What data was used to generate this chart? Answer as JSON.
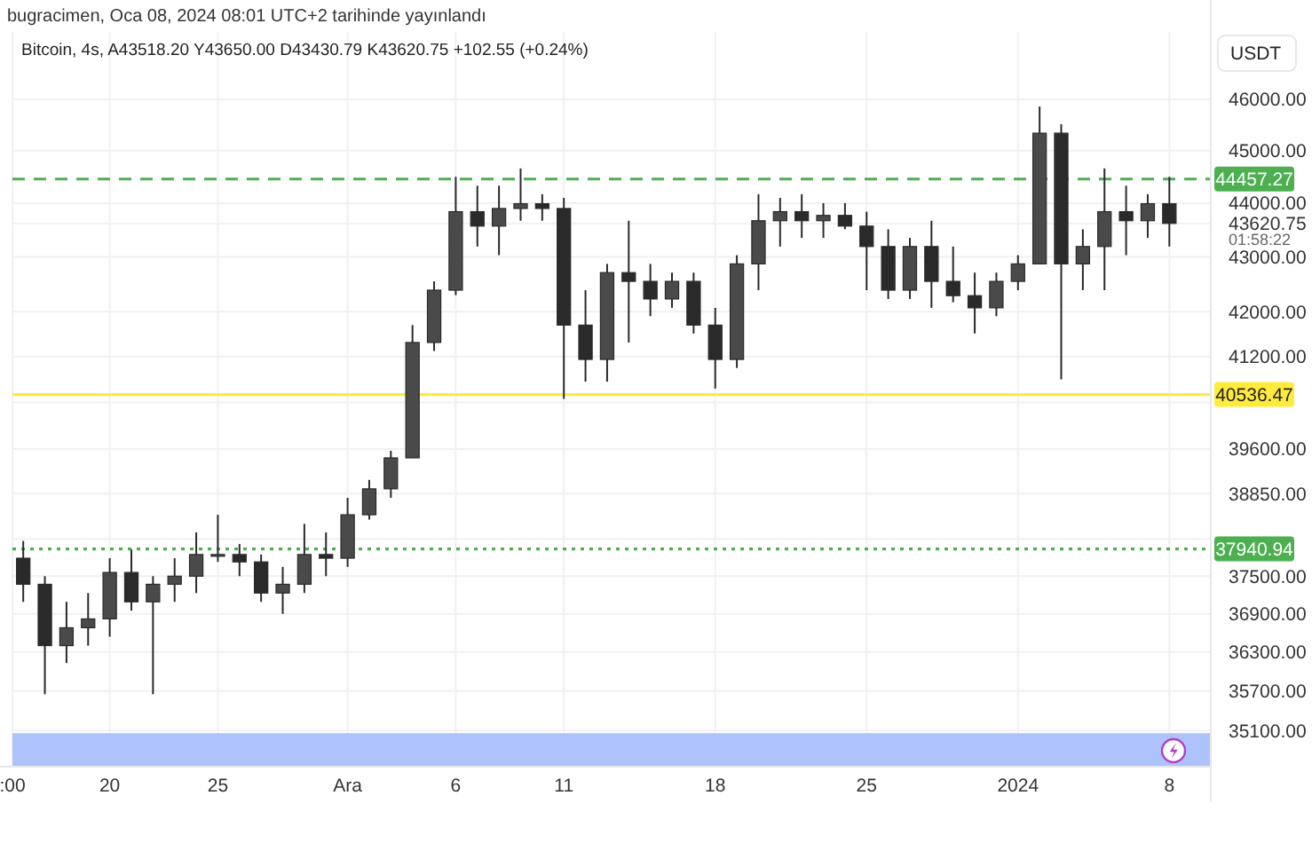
{
  "chart_data": {
    "type": "candlestick",
    "title": "bugracimen, Oca 08, 2024 08:01 UTC+2 tarihinde yayınlandı",
    "subtitle": "Bitcoin, 4s, A43518.20 Y43650.00 D43430.79 K43620.75 +102.55 (+0.24%)",
    "ylabel": "USDT",
    "log": true,
    "grid": true,
    "color": "#2a2a2a",
    "xlim": [
      "2023-11-15T12:00",
      "2024-01-09T22:00"
    ],
    "ylim": [
      34560,
      47350
    ],
    "xticks": [
      {
        "value": "2023-11-15T12:00",
        "label": ":00"
      },
      {
        "value": "2023-11-20",
        "label": "20"
      },
      {
        "value": "2023-11-25",
        "label": "25"
      },
      {
        "value": "2023-12-01",
        "label": "Ara"
      },
      {
        "value": "2023-12-06",
        "label": "6"
      },
      {
        "value": "2023-12-11",
        "label": "11"
      },
      {
        "value": "2023-12-18",
        "label": "18"
      },
      {
        "value": "2023-12-25",
        "label": "25"
      },
      {
        "value": "2024-01-01",
        "label": "2024"
      },
      {
        "value": "2024-01-08",
        "label": "8"
      }
    ],
    "yticks": [
      {
        "value": 35100,
        "label": "35100.00"
      },
      {
        "value": 35700,
        "label": "35700.00"
      },
      {
        "value": 36300,
        "label": "36300.00"
      },
      {
        "value": 36900,
        "label": "36900.00"
      },
      {
        "value": 37500,
        "label": "37500.00"
      },
      {
        "value": 38100,
        "label": null
      },
      {
        "value": 38850,
        "label": "38850.00"
      },
      {
        "value": 39600,
        "label": "39600.00"
      },
      {
        "value": 40400,
        "label": null
      },
      {
        "value": 41200,
        "label": "41200.00"
      },
      {
        "value": 42000,
        "label": "42000.00"
      },
      {
        "value": 43000,
        "label": "43000.00"
      },
      {
        "value": 43620.75,
        "label": "43620.75"
      },
      {
        "value": 44000,
        "label": "44000.00"
      },
      {
        "value": 45000,
        "label": "45000.00"
      },
      {
        "value": 46000,
        "label": "46000.00"
      }
    ],
    "x": [
      "2023-11-16",
      "2023-11-17",
      "2023-11-18",
      "2023-11-19",
      "2023-11-20",
      "2023-11-21",
      "2023-11-22",
      "2023-11-23",
      "2023-11-24",
      "2023-11-25",
      "2023-11-26",
      "2023-11-27",
      "2023-11-28",
      "2023-11-29",
      "2023-11-30",
      "2023-12-01",
      "2023-12-02",
      "2023-12-03",
      "2023-12-04",
      "2023-12-05",
      "2023-12-06",
      "2023-12-07",
      "2023-12-08",
      "2023-12-09",
      "2023-12-10",
      "2023-12-11",
      "2023-12-12",
      "2023-12-13",
      "2023-12-14",
      "2023-12-15",
      "2023-12-16",
      "2023-12-17",
      "2023-12-18",
      "2023-12-19",
      "2023-12-20",
      "2023-12-21",
      "2023-12-22",
      "2023-12-23",
      "2023-12-24",
      "2023-12-25",
      "2023-12-26",
      "2023-12-27",
      "2023-12-28",
      "2023-12-29",
      "2023-12-30",
      "2023-12-31",
      "2024-01-01",
      "2024-01-02",
      "2024-01-03",
      "2024-01-04",
      "2024-01-05",
      "2024-01-06",
      "2024-01-07",
      "2024-01-08"
    ],
    "ohlc": [
      [
        37790,
        38070,
        37090,
        37370
      ],
      [
        37370,
        37500,
        35650,
        36400
      ],
      [
        36400,
        37090,
        36130,
        36680
      ],
      [
        36680,
        37230,
        36400,
        36820
      ],
      [
        36820,
        37790,
        36540,
        37560
      ],
      [
        37560,
        37930,
        36950,
        37090
      ],
      [
        37090,
        37500,
        35650,
        37370
      ],
      [
        37370,
        37790,
        37090,
        37500
      ],
      [
        37500,
        38210,
        37230,
        37850
      ],
      [
        37850,
        38500,
        37730,
        37850
      ],
      [
        37850,
        38020,
        37500,
        37730
      ],
      [
        37730,
        37850,
        37090,
        37230
      ],
      [
        37230,
        37650,
        36900,
        37370
      ],
      [
        37370,
        38350,
        37230,
        37850
      ],
      [
        37850,
        38210,
        37500,
        37790
      ],
      [
        37790,
        38780,
        37650,
        38500
      ],
      [
        38500,
        39080,
        38420,
        38930
      ],
      [
        38930,
        39570,
        38780,
        39450
      ],
      [
        39450,
        41760,
        39450,
        41450
      ],
      [
        41450,
        42550,
        41300,
        42390
      ],
      [
        42390,
        44500,
        42300,
        43840
      ],
      [
        43840,
        44330,
        43190,
        43570
      ],
      [
        43570,
        44330,
        43030,
        43900
      ],
      [
        43900,
        44660,
        43670,
        43990
      ],
      [
        43990,
        44170,
        43670,
        43900
      ],
      [
        43900,
        44100,
        40460,
        41760
      ],
      [
        41760,
        42390,
        40760,
        41150
      ],
      [
        41150,
        42870,
        40760,
        42710
      ],
      [
        42710,
        43670,
        41450,
        42550
      ],
      [
        42550,
        42870,
        41920,
        42230
      ],
      [
        42230,
        42710,
        42070,
        42550
      ],
      [
        42550,
        42710,
        41610,
        41760
      ],
      [
        41760,
        42070,
        40640,
        41150
      ],
      [
        41150,
        43030,
        41000,
        42870
      ],
      [
        42870,
        44170,
        42390,
        43670
      ],
      [
        43670,
        44100,
        43190,
        43840
      ],
      [
        43840,
        44170,
        43350,
        43670
      ],
      [
        43670,
        44000,
        43350,
        43770
      ],
      [
        43770,
        44000,
        43510,
        43570
      ],
      [
        43570,
        43840,
        42390,
        43190
      ],
      [
        43190,
        43510,
        42230,
        42390
      ],
      [
        42390,
        43350,
        42230,
        43190
      ],
      [
        43190,
        43670,
        42070,
        42550
      ],
      [
        42550,
        43190,
        42170,
        42290
      ],
      [
        42290,
        42710,
        41610,
        42070
      ],
      [
        42070,
        42710,
        41920,
        42550
      ],
      [
        42550,
        43030,
        42390,
        42870
      ],
      [
        42870,
        45860,
        42870,
        45340
      ],
      [
        45340,
        45515,
        40800,
        42870
      ],
      [
        42870,
        43510,
        42390,
        43190
      ],
      [
        43190,
        44660,
        42390,
        43840
      ],
      [
        43840,
        44330,
        43030,
        43670
      ],
      [
        43670,
        44170,
        43350,
        43990
      ],
      [
        43990,
        44500,
        43190,
        43620
      ]
    ],
    "ref_lines": [
      {
        "axis": "y",
        "value": 44457.27,
        "label": "44457.27",
        "color": "#4caf50",
        "line_style": "dashed"
      },
      {
        "axis": "y",
        "value": 40536.47,
        "label": "40536.47",
        "color": "#ffeb3b",
        "line_style": "solid"
      },
      {
        "axis": "y",
        "value": 37940.94,
        "label": "37940.94",
        "color": "#4caf50",
        "line_style": "dotted"
      }
    ],
    "bands": [
      {
        "axis": "y",
        "from": 34560,
        "to": 35060,
        "color": "#aec3fb"
      }
    ],
    "annotations": [
      "01:58:22"
    ]
  }
}
